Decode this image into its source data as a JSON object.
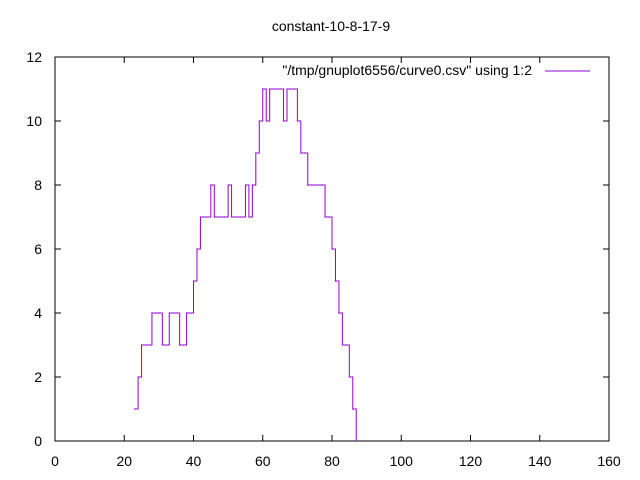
{
  "chart_data": {
    "type": "line",
    "title": "constant-10-8-17-9",
    "xlabel": "",
    "ylabel": "",
    "xlim": [
      0,
      160
    ],
    "ylim": [
      0,
      12
    ],
    "x_ticks": [
      0,
      20,
      40,
      60,
      80,
      100,
      120,
      140,
      160
    ],
    "y_ticks": [
      0,
      2,
      4,
      6,
      8,
      10,
      12
    ],
    "grid": false,
    "legend_position": "top-right",
    "series": [
      {
        "name": "\"/tmp/gnuplot6556/curve0.csv\" using 1:2",
        "color": "#9400d3",
        "style": "steps",
        "x": [
          23,
          24,
          25,
          26,
          27,
          28,
          29,
          30,
          31,
          32,
          33,
          34,
          35,
          36,
          37,
          38,
          39,
          40,
          41,
          42,
          43,
          44,
          45,
          46,
          47,
          48,
          49,
          50,
          51,
          52,
          53,
          54,
          55,
          56,
          57,
          58,
          59,
          60,
          61,
          62,
          63,
          64,
          65,
          66,
          67,
          68,
          69,
          70,
          71,
          72,
          73,
          74,
          75,
          76,
          77,
          78,
          79,
          80,
          81,
          82,
          83,
          84,
          85,
          86,
          87
        ],
        "y": [
          1,
          2,
          3,
          3,
          3,
          4,
          4,
          4,
          3,
          3,
          4,
          4,
          4,
          3,
          3,
          4,
          4,
          5,
          6,
          7,
          7,
          7,
          8,
          7,
          7,
          7,
          7,
          8,
          7,
          7,
          7,
          7,
          8,
          7,
          8,
          9,
          10,
          11,
          10,
          11,
          11,
          11,
          11,
          10,
          11,
          11,
          11,
          10,
          9,
          9,
          8,
          8,
          8,
          8,
          8,
          7,
          7,
          6,
          5,
          4,
          3,
          3,
          2,
          1,
          0
        ]
      }
    ]
  }
}
